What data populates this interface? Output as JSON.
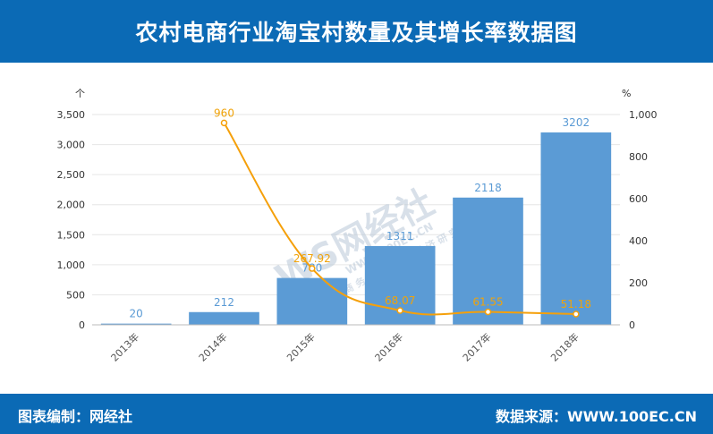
{
  "header": {
    "title": "农村电商行业淘宝村数量及其增长率数据图"
  },
  "footer": {
    "left": "图表编制：网经社",
    "right": "数据来源：WWW.100EC.CN"
  },
  "watermark": {
    "text": "WS网经社",
    "url": "WWW.100EC.CN",
    "sub": "电 子 商 务 研 究 中 心   经 济 研 究 平 台"
  },
  "colors": {
    "header": "#0b6ab5",
    "bar": "#5b9bd5",
    "line": "#f5a00a"
  },
  "chart_data": {
    "type": "bar",
    "categories": [
      "2013年",
      "2014年",
      "2015年",
      "2016年",
      "2017年",
      "2018年"
    ],
    "series": [
      {
        "type": "bar",
        "axis": "left",
        "values": [
          20,
          212,
          780,
          1311,
          2118,
          3202
        ]
      },
      {
        "type": "line",
        "axis": "right",
        "values": [
          null,
          960,
          267.92,
          68.07,
          61.55,
          51.18
        ]
      }
    ],
    "bar_labels": [
      "20",
      "212",
      "780",
      "1311",
      "2118",
      "3202"
    ],
    "line_labels": [
      "",
      "960",
      "267.92",
      "68.07",
      "61.55",
      "51.18"
    ],
    "y_left": {
      "unit": "个",
      "ylim": [
        0,
        3500
      ],
      "ticks": [
        "0",
        "500",
        "1,000",
        "1,500",
        "2,000",
        "2,500",
        "3,000",
        "3,500"
      ]
    },
    "y_right": {
      "unit": "%",
      "ylim": [
        0,
        1000
      ],
      "ticks": [
        "0",
        "200",
        "400",
        "600",
        "800",
        "1,000"
      ]
    },
    "grid": true
  }
}
